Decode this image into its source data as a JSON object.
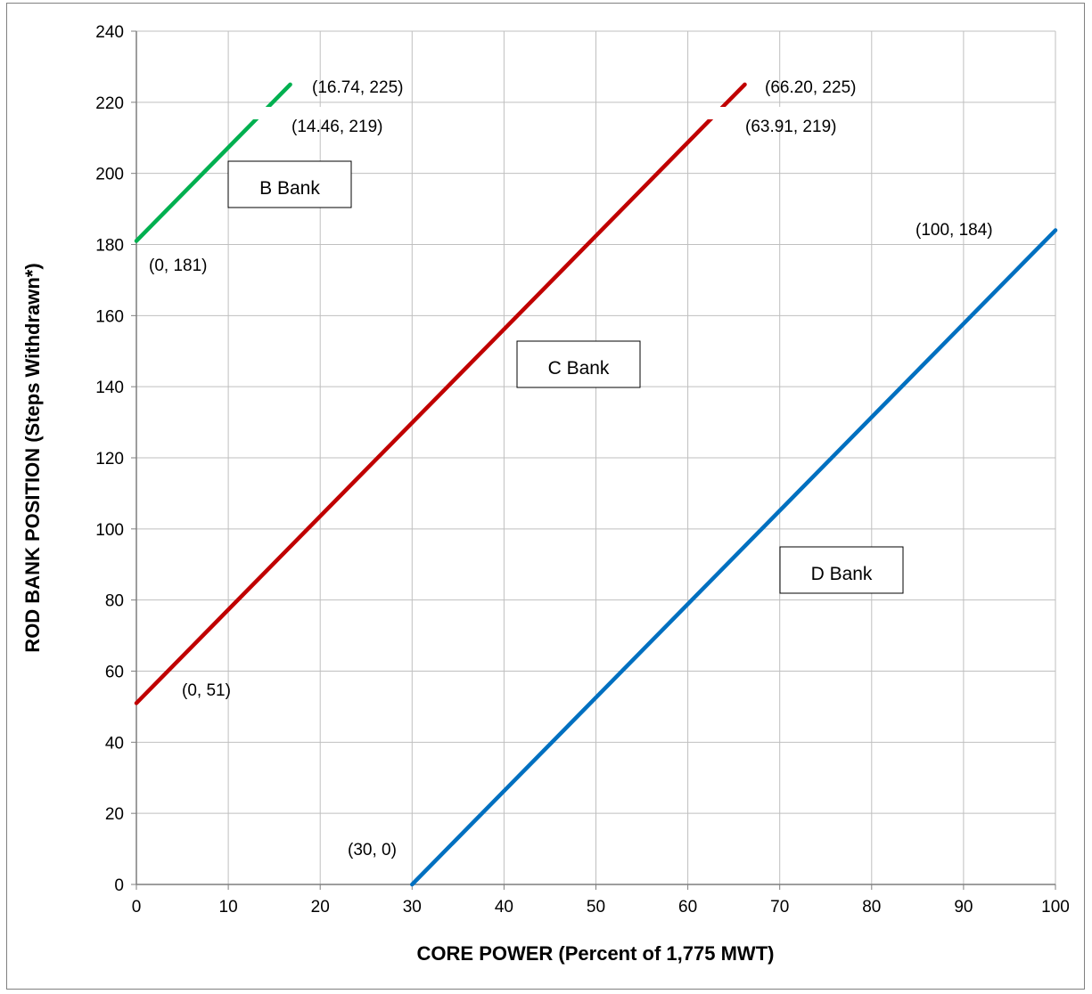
{
  "chart_data": {
    "type": "line",
    "xlabel": "CORE POWER (Percent of 1,775 MWT)",
    "ylabel": "ROD BANK POSITION (Steps Withdrawn*)",
    "xlim": [
      0,
      100
    ],
    "ylim": [
      0,
      240
    ],
    "xticks": [
      0,
      10,
      20,
      30,
      40,
      50,
      60,
      70,
      80,
      90,
      100
    ],
    "yticks": [
      0,
      20,
      40,
      60,
      80,
      100,
      120,
      140,
      160,
      180,
      200,
      220,
      240
    ],
    "grid": true,
    "series": [
      {
        "name": "B Bank",
        "color": "#00b050",
        "x": [
          0,
          14.46,
          16.74
        ],
        "y": [
          181,
          219,
          225
        ]
      },
      {
        "name": "C Bank",
        "color": "#c00000",
        "x": [
          0,
          63.91,
          66.2
        ],
        "y": [
          51,
          219,
          225
        ]
      },
      {
        "name": "D Bank",
        "color": "#0070c0",
        "x": [
          30,
          100
        ],
        "y": [
          0,
          184
        ]
      }
    ],
    "point_labels": [
      {
        "text": "(16.74, 225)"
      },
      {
        "text": "(14.46, 219)"
      },
      {
        "text": "(0, 181)"
      },
      {
        "text": "(66.20, 225)"
      },
      {
        "text": "(63.91, 219)"
      },
      {
        "text": "(0, 51)"
      },
      {
        "text": "(100, 184)"
      },
      {
        "text": "(30, 0)"
      }
    ]
  }
}
